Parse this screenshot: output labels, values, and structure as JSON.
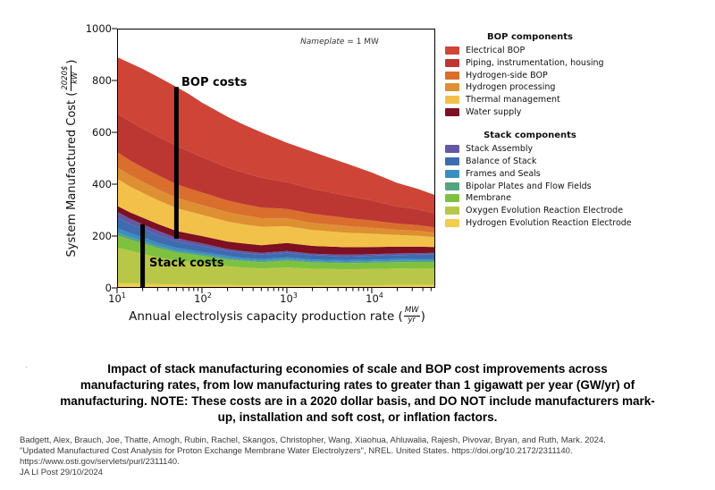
{
  "chart_data": {
    "type": "area",
    "stacked": true,
    "x_scale": "log",
    "grid": false,
    "xlim": [
      10,
      56000
    ],
    "ylim": [
      0,
      1000
    ],
    "x": [
      10,
      14,
      20,
      30,
      50,
      70,
      100,
      200,
      300,
      500,
      1000,
      2000,
      5000,
      10000,
      20000,
      35000,
      56000
    ],
    "x_axis": {
      "label_prefix": "Annual electrolysis capacity production rate (",
      "label_frac_num": "MW",
      "label_frac_den": "yr",
      "label_suffix": ")",
      "ticks": [
        {
          "base": "10",
          "exp": "1"
        },
        {
          "base": "10",
          "exp": "2"
        },
        {
          "base": "10",
          "exp": "3"
        },
        {
          "base": "10",
          "exp": "4"
        }
      ],
      "tick_values": [
        10,
        100,
        1000,
        10000
      ]
    },
    "y_axis": {
      "label_prefix": "System Manufactured Cost (",
      "label_frac_num": "2020$",
      "label_frac_den": "kW",
      "label_suffix": ")",
      "ticks": [
        "0",
        "200",
        "400",
        "600",
        "800",
        "1000"
      ],
      "tick_values": [
        0,
        200,
        400,
        600,
        800,
        1000
      ]
    },
    "annotation": {
      "italic": "Nameplate",
      "rest": " = 1 MW"
    },
    "cost_lines": [
      {
        "x": 50,
        "y0": 190,
        "y1": 775,
        "label": "BOP costs"
      },
      {
        "x": 20,
        "y0": 0,
        "y1": 246,
        "label": "Stack costs"
      }
    ],
    "series": [
      {
        "name": "Hydrogen Evolution Reaction Electrode",
        "group": "stack",
        "color": "#f2cc4d",
        "values": [
          18,
          17,
          16,
          14,
          13,
          12,
          12,
          11,
          10,
          10,
          10,
          10,
          10,
          10,
          11,
          11,
          11
        ]
      },
      {
        "name": "Oxygen Evolution Reaction Electrode",
        "group": "stack",
        "color": "#b9c748",
        "values": [
          138,
          127,
          116,
          104,
          92,
          89,
          83,
          72,
          69,
          65,
          69,
          64,
          62,
          63,
          64,
          65,
          65
        ]
      },
      {
        "name": "Membrane",
        "group": "stack",
        "color": "#7ec13f",
        "values": [
          47,
          43,
          40,
          36,
          32,
          30,
          29,
          26,
          25,
          24,
          26,
          24,
          23,
          24,
          24,
          24,
          24
        ]
      },
      {
        "name": "Bipolar Plates and Flow Fields",
        "group": "stack",
        "color": "#55a37f",
        "values": [
          11,
          10,
          9,
          8,
          7,
          6,
          6,
          6,
          5,
          5,
          6,
          5,
          5,
          5,
          5,
          5,
          5
        ]
      },
      {
        "name": "Frames and Seals",
        "group": "stack",
        "color": "#3a8ec4",
        "values": [
          17,
          15,
          14,
          12,
          11,
          10,
          9,
          8,
          7,
          7,
          7,
          7,
          7,
          7,
          7,
          7,
          7
        ]
      },
      {
        "name": "Balance of Stack",
        "group": "stack",
        "color": "#3d6cb0",
        "values": [
          40,
          36,
          33,
          29,
          25,
          23,
          22,
          19,
          18,
          17,
          17,
          16,
          15,
          15,
          16,
          16,
          17
        ]
      },
      {
        "name": "Stack Assembly",
        "group": "stack",
        "color": "#6458a5",
        "values": [
          23,
          20,
          18,
          18,
          13,
          12,
          11,
          8,
          8,
          7,
          7,
          6,
          6,
          6,
          6,
          6,
          6
        ]
      },
      {
        "name": "Water supply",
        "group": "bop",
        "color": "#7d1021",
        "values": [
          23,
          24,
          25,
          26,
          27,
          28,
          28,
          29,
          30,
          30,
          31,
          30,
          29,
          28,
          26,
          25,
          23
        ]
      },
      {
        "name": "Thermal management",
        "group": "bop",
        "color": "#f2c14a",
        "values": [
          104,
          100,
          96,
          92,
          88,
          85,
          82,
          77,
          74,
          71,
          65,
          61,
          56,
          51,
          45,
          42,
          38
        ]
      },
      {
        "name": "Hydrogen processing",
        "group": "bop",
        "color": "#de8f32",
        "values": [
          45,
          44,
          43,
          42,
          40,
          39,
          38,
          36,
          35,
          33,
          30,
          28,
          26,
          23,
          20,
          19,
          17
        ]
      },
      {
        "name": "Hydrogen-side BOP",
        "group": "bop",
        "color": "#d96e2d",
        "values": [
          58,
          57,
          55,
          54,
          52,
          50,
          48,
          45,
          43,
          41,
          37,
          35,
          31,
          28,
          24,
          22,
          20
        ]
      },
      {
        "name": "Piping, instrumentation, housing",
        "group": "bop",
        "color": "#bd3732",
        "values": [
          149,
          150,
          150,
          149,
          148,
          143,
          136,
          127,
          122,
          115,
          103,
          96,
          86,
          77,
          66,
          61,
          54
        ]
      },
      {
        "name": "Electrical BOP",
        "group": "bop",
        "color": "#ce4537",
        "values": [
          217,
          225,
          230,
          231,
          227,
          221,
          211,
          196,
          186,
          175,
          152,
          143,
          124,
          108,
          91,
          79,
          71
        ]
      }
    ]
  },
  "legend": {
    "bop_title": "BOP components",
    "bop": [
      {
        "label": "Electrical BOP",
        "color": "#ce4537"
      },
      {
        "label": "Piping, instrumentation, housing",
        "color": "#bd3732"
      },
      {
        "label": "Hydrogen-side BOP",
        "color": "#d96e2d"
      },
      {
        "label": "Hydrogen processing",
        "color": "#de8f32"
      },
      {
        "label": "Thermal management",
        "color": "#f2c14a"
      },
      {
        "label": "Water supply",
        "color": "#7d1021"
      }
    ],
    "stack_title": "Stack components",
    "stack": [
      {
        "label": "Stack Assembly",
        "color": "#6458a5"
      },
      {
        "label": "Balance of Stack",
        "color": "#3d6cb0"
      },
      {
        "label": "Frames and Seals",
        "color": "#3a8ec4"
      },
      {
        "label": "Bipolar Plates and Flow Fields",
        "color": "#55a37f"
      },
      {
        "label": "Membrane",
        "color": "#7ec13f"
      },
      {
        "label": "Oxygen Evolution Reaction Electrode",
        "color": "#b9c748"
      },
      {
        "label": "Hydrogen Evolution Reaction Electrode",
        "color": "#f2cc4d"
      }
    ]
  },
  "caption": {
    "artifact_mark": "-",
    "lines": [
      "Impact of stack manufacturing economies of scale and BOP cost improvements across",
      "manufacturing rates, from low manufacturing rates to greater than 1 gigawatt per year (GW/yr) of",
      "manufacturing. NOTE: These costs are in a 2020 dollar basis, and DO NOT include manufacturers mark-",
      "up, installation and soft cost, or inflation factors."
    ]
  },
  "citation": {
    "lines": [
      "Badgett, Alex, Brauch, Joe, Thatte, Amogh, Rubin, Rachel, Skangos, Christopher, Wang, Xiaohua, Ahluwalia, Rajesh, Pivovar, Bryan, and Ruth, Mark. 2024.",
      "\"Updated Manufactured Cost Analysis for Proton Exchange Membrane Water Electrolyzers\", NREL. United States. https://doi.org/10.2172/2311140.",
      "https://www.osti.gov/servlets/purl/2311140.",
      "JA LI Post 29/10/2024"
    ]
  }
}
